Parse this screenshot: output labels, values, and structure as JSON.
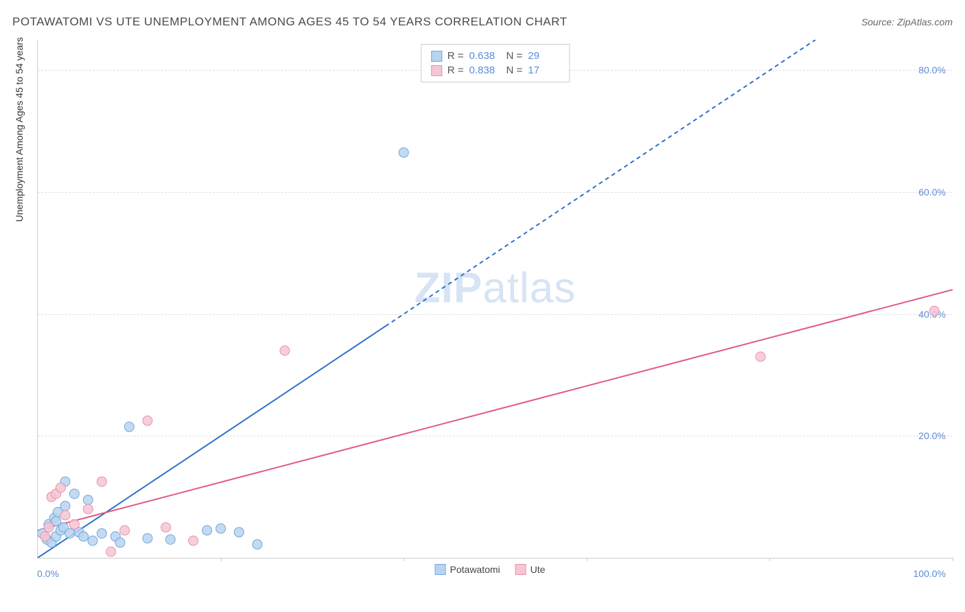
{
  "title": "POTAWATOMI VS UTE UNEMPLOYMENT AMONG AGES 45 TO 54 YEARS CORRELATION CHART",
  "source": "Source: ZipAtlas.com",
  "watermark_a": "ZIP",
  "watermark_b": "atlas",
  "y_axis_title": "Unemployment Among Ages 45 to 54 years",
  "legend_top": {
    "series": [
      {
        "r_label": "R =",
        "r_value": "0.638",
        "n_label": "N =",
        "n_value": "29"
      },
      {
        "r_label": "R =",
        "r_value": "0.838",
        "n_label": "N =",
        "n_value": "17"
      }
    ]
  },
  "legend_bottom": {
    "items": [
      {
        "label": "Potawatomi"
      },
      {
        "label": "Ute"
      }
    ]
  },
  "chart": {
    "type": "scatter",
    "xlim": [
      0,
      100
    ],
    "ylim": [
      0,
      85
    ],
    "x_tick_step": 20,
    "y_ticks": [
      20,
      40,
      60,
      80
    ],
    "y_tick_labels": [
      "20.0%",
      "40.0%",
      "60.0%",
      "80.0%"
    ],
    "x_min_label": "0.0%",
    "x_max_label": "100.0%",
    "grid_color": "#e0e0e0",
    "axis_color": "#cccccc",
    "background_color": "#ffffff",
    "marker_radius": 7,
    "marker_stroke_width": 1,
    "series": [
      {
        "name": "Potawatomi",
        "fill": "#b8d4f0",
        "stroke": "#6fa8dc",
        "line_color": "#2e6fc9",
        "line_width": 2,
        "dash_after_x": 38,
        "trend": {
          "x1": 0,
          "y1": 0,
          "x2": 85,
          "y2": 85
        },
        "points": [
          [
            0.5,
            4.0
          ],
          [
            1.0,
            3.0
          ],
          [
            1.2,
            5.5
          ],
          [
            1.5,
            2.5
          ],
          [
            1.8,
            6.5
          ],
          [
            2.0,
            3.5
          ],
          [
            2.2,
            7.5
          ],
          [
            2.5,
            4.5
          ],
          [
            2.8,
            5.0
          ],
          [
            3.0,
            8.5
          ],
          [
            3.0,
            12.5
          ],
          [
            3.5,
            4.0
          ],
          [
            4.0,
            10.5
          ],
          [
            4.5,
            4.2
          ],
          [
            5.0,
            3.5
          ],
          [
            5.5,
            9.5
          ],
          [
            6.0,
            2.8
          ],
          [
            7.0,
            4.0
          ],
          [
            8.5,
            3.5
          ],
          [
            9.0,
            2.5
          ],
          [
            10.0,
            21.5
          ],
          [
            12.0,
            3.2
          ],
          [
            14.5,
            3.0
          ],
          [
            18.5,
            4.5
          ],
          [
            20.0,
            4.8
          ],
          [
            22.0,
            4.2
          ],
          [
            24.0,
            2.2
          ],
          [
            40.0,
            66.5
          ],
          [
            2.0,
            6.0
          ]
        ]
      },
      {
        "name": "Ute",
        "fill": "#f5c6d4",
        "stroke": "#e891aa",
        "line_color": "#e05a7f",
        "line_width": 2,
        "trend": {
          "x1": 0,
          "y1": 4.5,
          "x2": 100,
          "y2": 44
        },
        "points": [
          [
            0.8,
            3.5
          ],
          [
            1.2,
            5.0
          ],
          [
            1.5,
            10.0
          ],
          [
            2.0,
            10.5
          ],
          [
            2.5,
            11.5
          ],
          [
            3.0,
            7.0
          ],
          [
            4.0,
            5.5
          ],
          [
            5.5,
            8.0
          ],
          [
            7.0,
            12.5
          ],
          [
            8.0,
            1.0
          ],
          [
            9.5,
            4.5
          ],
          [
            12.0,
            22.5
          ],
          [
            14.0,
            5.0
          ],
          [
            17.0,
            2.8
          ],
          [
            27.0,
            34.0
          ],
          [
            79.0,
            33.0
          ],
          [
            98.0,
            40.5
          ]
        ]
      }
    ]
  }
}
